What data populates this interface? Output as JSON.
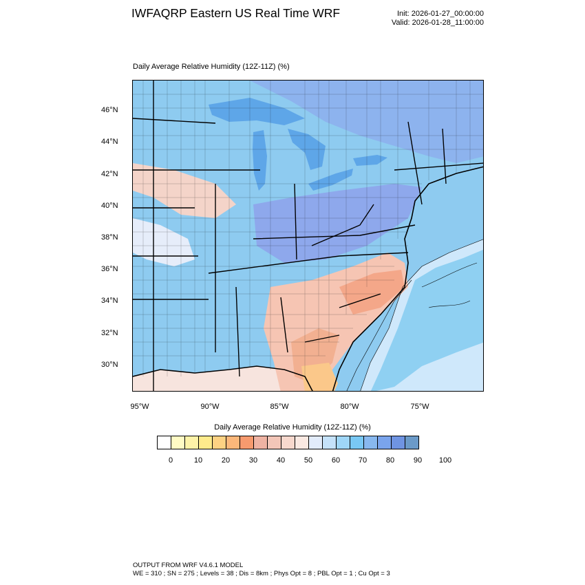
{
  "header": {
    "title": "IWFAQRP Eastern US Real Time WRF",
    "init": "Init: 2026-01-27_00:00:00",
    "valid": "Valid: 2026-01-28_11:00:00"
  },
  "map": {
    "title": "Daily Average Relative Humidity (12Z-11Z)   (%)",
    "lat_labels": [
      "46°N",
      "44°N",
      "42°N",
      "40°N",
      "38°N",
      "36°N",
      "34°N",
      "32°N",
      "30°N"
    ],
    "lon_labels": [
      "95°W",
      "90°W",
      "85°W",
      "80°W",
      "75°W"
    ],
    "land_base_color": "#8ecbf0",
    "ocean_offshore_color": "#cfe8fb",
    "lake_color": "#5ea6e8"
  },
  "colorbar": {
    "title": "Daily Average Relative Humidity (12Z-11Z)  (%)",
    "colors": [
      "#ffffff",
      "#fffbc4",
      "#fef3a8",
      "#feeb8c",
      "#fdd283",
      "#fbb77a",
      "#f79a6e",
      "#efb3a3",
      "#f3c6b8",
      "#f7d8cd",
      "#fae9e2",
      "#e2ecfb",
      "#c5e2fa",
      "#9fd6f7",
      "#79c8f4",
      "#88b8ef",
      "#7aa4ec",
      "#6f94e2",
      "#6b9ac8"
    ],
    "tick_labels": [
      "0",
      "10",
      "20",
      "30",
      "40",
      "50",
      "60",
      "70",
      "80",
      "90",
      "100"
    ]
  },
  "footer": {
    "line1": "OUTPUT FROM WRF V4.6.1 MODEL",
    "line2": "WE = 310 ; SN = 275 ; Levels = 38 ; Dis = 8km ; Phys Opt = 8 ; PBL Opt = 1 ; Cu Opt = 3"
  }
}
